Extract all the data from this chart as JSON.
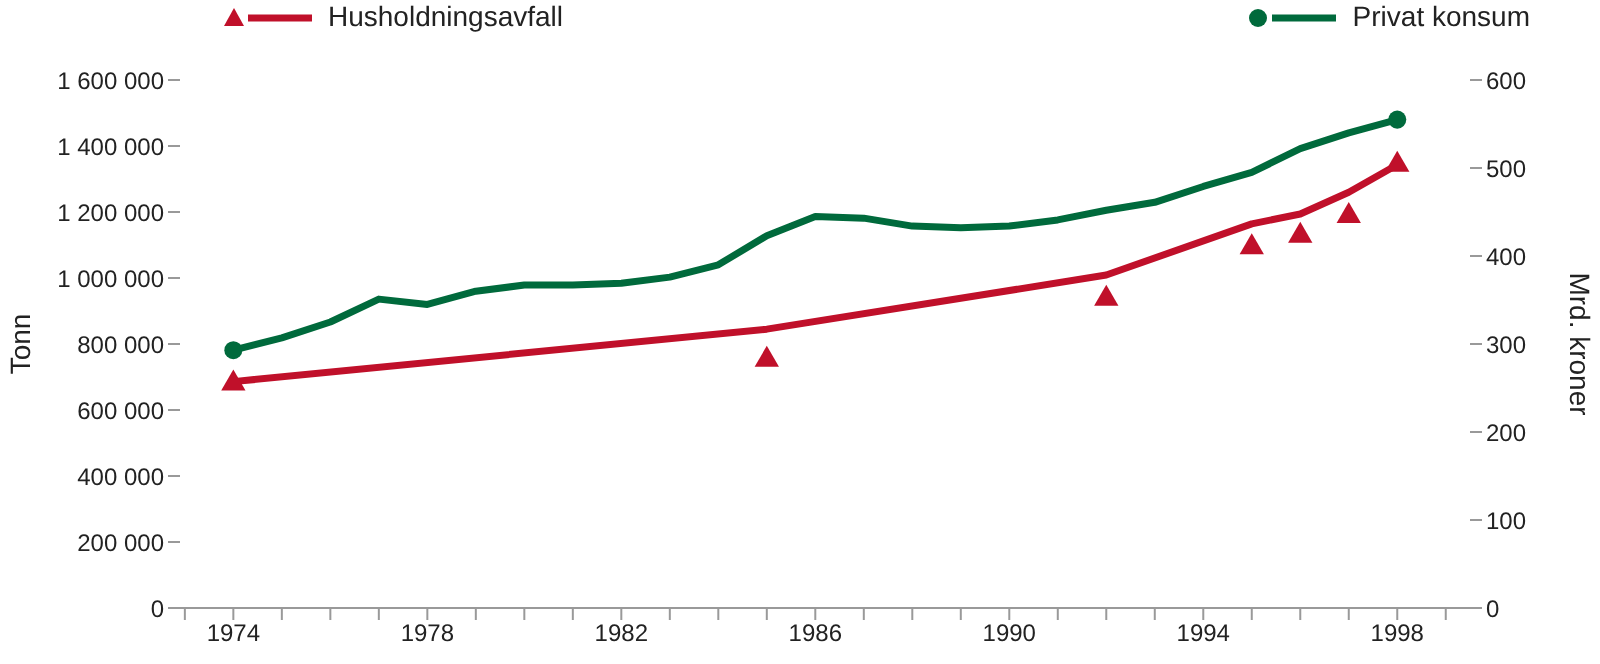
{
  "chart_data": {
    "type": "line",
    "ylabel": "Tonn",
    "y2label": "Mrd. kroner",
    "legend": "top",
    "grid": false,
    "xlim": [
      1972.9,
      1999.5
    ],
    "xticks": [
      {
        "value": 1973,
        "label": null
      },
      1974,
      {
        "value": 1975,
        "label": null
      },
      {
        "value": 1976,
        "label": null
      },
      {
        "value": 1977,
        "label": null
      },
      1978,
      {
        "value": 1979,
        "label": null
      },
      {
        "value": 1980,
        "label": null
      },
      {
        "value": 1981,
        "label": null
      },
      1982,
      {
        "value": 1983,
        "label": null
      },
      {
        "value": 1984,
        "label": null
      },
      {
        "value": 1985,
        "label": null
      },
      1986,
      {
        "value": 1987,
        "label": null
      },
      {
        "value": 1988,
        "label": null
      },
      {
        "value": 1989,
        "label": null
      },
      1990,
      {
        "value": 1991,
        "label": null
      },
      {
        "value": 1992,
        "label": null
      },
      {
        "value": 1993,
        "label": null
      },
      1994,
      {
        "value": 1995,
        "label": null
      },
      {
        "value": 1996,
        "label": null
      },
      {
        "value": 1997,
        "label": null
      },
      1998,
      {
        "value": 1999,
        "label": null
      }
    ],
    "ylim": [
      0,
      1600000
    ],
    "yticks": [
      0,
      {
        "value": 200000,
        "label": "200 000"
      },
      {
        "value": 400000,
        "label": "400 000"
      },
      {
        "value": 600000,
        "label": "600 000"
      },
      {
        "value": 800000,
        "label": "800 000"
      },
      {
        "value": 1000000,
        "label": "1 000 000"
      },
      {
        "value": 1200000,
        "label": "1 200 000"
      },
      {
        "value": 1400000,
        "label": "1 400 000"
      },
      {
        "value": 1600000,
        "label": "1 600 000"
      }
    ],
    "y2lim": [
      0,
      600
    ],
    "y2ticks": [
      0,
      100,
      200,
      300,
      400,
      500,
      600
    ],
    "series": [
      {
        "color": "#c0102a",
        "marker": "none",
        "line_style": "solid",
        "x": [
          1974,
          1985,
          1992,
          1995,
          1996,
          1997,
          1998
        ],
        "values": [
          686000,
          845000,
          1009000,
          1164000,
          1194000,
          1260000,
          1343000
        ]
      },
      {
        "type": "scatter",
        "name": "Husholdningsavfall",
        "color": "#c0102a",
        "marker": "triangle",
        "x": [
          1974,
          1985,
          1992,
          1995,
          1996,
          1997,
          1998
        ],
        "values": [
          680000,
          752000,
          937000,
          1093000,
          1128000,
          1188000,
          1343000
        ]
      },
      {
        "axis": "y2",
        "color": "#006a3c",
        "marker": "none",
        "line_style": "solid",
        "x": [
          1974,
          1975,
          1976,
          1977,
          1978,
          1979,
          1980,
          1981,
          1982,
          1983,
          1984,
          1985,
          1986,
          1987,
          1988,
          1989,
          1990,
          1991,
          1992,
          1993,
          1994,
          1995,
          1996,
          1997,
          1998
        ],
        "values": [
          293,
          307,
          325,
          351,
          345,
          360,
          367,
          367,
          369,
          376,
          390,
          423,
          445,
          443,
          434,
          432,
          434,
          441,
          452,
          461,
          479,
          495,
          522,
          540,
          555
        ]
      },
      {
        "type": "scatter",
        "axis": "y2",
        "name": "Privat konsum",
        "color": "#006a3c",
        "marker": "circle",
        "x": [
          1974,
          1998
        ],
        "values": [
          293,
          555
        ]
      }
    ]
  }
}
